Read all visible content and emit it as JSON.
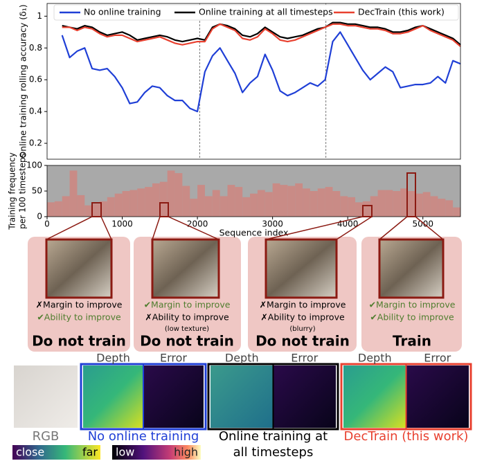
{
  "chart_data": [
    {
      "type": "line",
      "ylabel": "Online training rolling accuracy (δ₁)",
      "x": [
        200,
        300,
        400,
        500,
        600,
        700,
        800,
        900,
        1000,
        1100,
        1200,
        1300,
        1400,
        1500,
        1600,
        1700,
        1800,
        1900,
        2000,
        2100,
        2200,
        2300,
        2400,
        2500,
        2600,
        2700,
        2800,
        2900,
        3000,
        3100,
        3200,
        3300,
        3400,
        3500,
        3600,
        3700,
        3800,
        3900,
        4000,
        4100,
        4200,
        4300,
        4400,
        4500,
        4600,
        4700,
        4800,
        4900,
        5000,
        5100,
        5200,
        5300,
        5400,
        5500
      ],
      "series": [
        {
          "name": "No online training",
          "color": "#1f3fd6",
          "values": [
            0.88,
            0.74,
            0.78,
            0.8,
            0.67,
            0.66,
            0.67,
            0.62,
            0.55,
            0.45,
            0.46,
            0.52,
            0.56,
            0.55,
            0.5,
            0.47,
            0.47,
            0.42,
            0.4,
            0.65,
            0.75,
            0.8,
            0.72,
            0.64,
            0.52,
            0.58,
            0.62,
            0.76,
            0.66,
            0.53,
            0.5,
            0.52,
            0.55,
            0.58,
            0.56,
            0.6,
            0.84,
            0.9,
            0.82,
            0.74,
            0.66,
            0.6,
            0.64,
            0.68,
            0.65,
            0.55,
            0.56,
            0.57,
            0.57,
            0.58,
            0.62,
            0.58,
            0.72,
            0.7
          ]
        },
        {
          "name": "Online training at all timesteps",
          "color": "#000000",
          "values": [
            0.94,
            0.93,
            0.92,
            0.94,
            0.93,
            0.9,
            0.88,
            0.89,
            0.9,
            0.88,
            0.85,
            0.86,
            0.87,
            0.88,
            0.87,
            0.85,
            0.84,
            0.85,
            0.86,
            0.85,
            0.93,
            0.95,
            0.94,
            0.92,
            0.88,
            0.87,
            0.89,
            0.93,
            0.9,
            0.87,
            0.86,
            0.87,
            0.88,
            0.9,
            0.92,
            0.93,
            0.96,
            0.96,
            0.95,
            0.95,
            0.94,
            0.93,
            0.93,
            0.92,
            0.9,
            0.9,
            0.91,
            0.93,
            0.94,
            0.92,
            0.9,
            0.88,
            0.86,
            0.82
          ]
        },
        {
          "name": "DecTrain (this work)",
          "color": "#e8402f",
          "values": [
            0.93,
            0.93,
            0.91,
            0.93,
            0.92,
            0.89,
            0.87,
            0.88,
            0.88,
            0.86,
            0.84,
            0.85,
            0.86,
            0.87,
            0.85,
            0.83,
            0.82,
            0.83,
            0.84,
            0.84,
            0.92,
            0.95,
            0.93,
            0.91,
            0.86,
            0.85,
            0.87,
            0.92,
            0.89,
            0.85,
            0.84,
            0.85,
            0.87,
            0.89,
            0.91,
            0.93,
            0.95,
            0.95,
            0.94,
            0.94,
            0.93,
            0.92,
            0.92,
            0.91,
            0.89,
            0.89,
            0.9,
            0.92,
            0.94,
            0.91,
            0.89,
            0.87,
            0.85,
            0.81
          ]
        }
      ],
      "xlim": [
        0,
        5500
      ],
      "ylim": [
        0.1,
        1.08
      ],
      "yticks": [
        0.2,
        0.4,
        0.6,
        0.8,
        1.0
      ],
      "vlines": [
        2030,
        3710
      ]
    },
    {
      "type": "histogram",
      "xlabel": "Sequence index",
      "ylabel": [
        "Training frequency",
        "per 100 timesteps"
      ],
      "bins": [
        0,
        100,
        200,
        300,
        400,
        500,
        600,
        700,
        800,
        900,
        1000,
        1100,
        1200,
        1300,
        1400,
        1500,
        1600,
        1700,
        1800,
        1900,
        2000,
        2100,
        2200,
        2300,
        2400,
        2500,
        2600,
        2700,
        2800,
        2900,
        3000,
        3100,
        3200,
        3300,
        3400,
        3500,
        3600,
        3700,
        3800,
        3900,
        4000,
        4100,
        4200,
        4300,
        4400,
        4500,
        4600,
        4700,
        4800,
        4900,
        5000,
        5100,
        5200,
        5300,
        5400,
        5500
      ],
      "values": [
        28,
        30,
        40,
        90,
        42,
        22,
        25,
        30,
        38,
        45,
        50,
        52,
        55,
        58,
        65,
        68,
        90,
        85,
        60,
        35,
        62,
        40,
        52,
        40,
        62,
        58,
        38,
        45,
        52,
        48,
        65,
        62,
        60,
        65,
        55,
        50,
        55,
        58,
        50,
        40,
        38,
        28,
        30,
        40,
        52,
        52,
        50,
        55,
        50,
        45,
        48,
        40,
        35,
        32,
        18
      ],
      "color": "#c98b86",
      "background": "#a9a9a9",
      "xlim": [
        0,
        5500
      ],
      "ylim": [
        0,
        100
      ],
      "xticks": [
        0,
        1000,
        2000,
        3000,
        4000,
        5000
      ],
      "yticks": [
        0,
        50,
        100
      ]
    }
  ],
  "panels": [
    {
      "lines": [
        {
          "text": "✗Margin to improve",
          "color": "#000000"
        },
        {
          "text": "✔Ability to improve",
          "color": "#4f7d2e"
        }
      ],
      "decision": "Do not train"
    },
    {
      "lines": [
        {
          "text": "✔Margin to improve",
          "color": "#4f7d2e"
        },
        {
          "text": "✗Ability to improve",
          "color": "#000000"
        }
      ],
      "note": "(low texture)",
      "decision": "Do not train"
    },
    {
      "lines": [
        {
          "text": "✗Margin to improve",
          "color": "#000000"
        },
        {
          "text": "✗Ability to improve",
          "color": "#000000"
        }
      ],
      "note": "(blurry)",
      "decision": "Do not train"
    },
    {
      "lines": [
        {
          "text": "✔Margin to improve",
          "color": "#4f7d2e"
        },
        {
          "text": "✔Ability to improve",
          "color": "#4f7d2e"
        }
      ],
      "decision": "Train"
    }
  ],
  "comparison": {
    "depth": "Depth",
    "error": "Error",
    "rgb": "RGB",
    "groups": [
      {
        "label": [
          "No online training"
        ],
        "color": "#1f3fd6"
      },
      {
        "label": [
          "Online training at",
          "all timesteps"
        ],
        "color": "#000000"
      },
      {
        "label": [
          "DecTrain (this work)"
        ],
        "color": "#e8402f"
      }
    ],
    "colorbars": [
      {
        "low": "close",
        "high": "far"
      },
      {
        "low": "low",
        "high": "high"
      }
    ]
  }
}
